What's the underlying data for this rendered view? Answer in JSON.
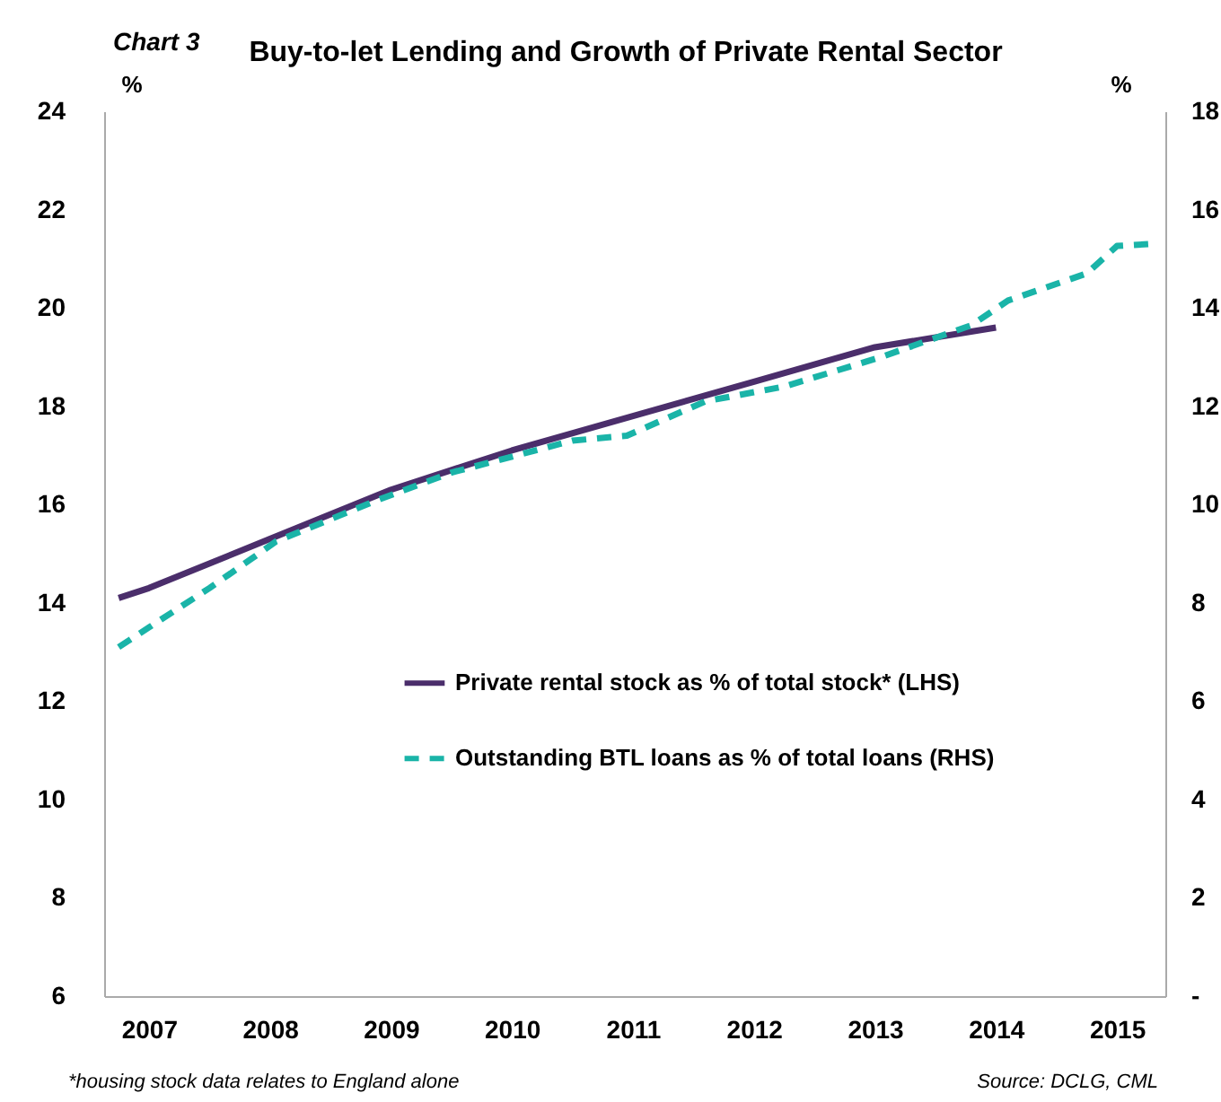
{
  "chart_data": {
    "type": "line",
    "title": "Buy-to-let Lending and Growth of Private Rental Sector",
    "ylabel": "%",
    "y2label": "%",
    "annotations": [
      "Chart 3",
      "*housing stock data relates to England alone",
      "Source: DCLG, CML"
    ],
    "xlim": [
      2006.63,
      2015.4
    ],
    "xticks": [
      2007,
      2008,
      2009,
      2010,
      2011,
      2012,
      2013,
      2014,
      2015
    ],
    "ylim": [
      6,
      24
    ],
    "yticks": [
      6,
      8,
      10,
      12,
      14,
      16,
      18,
      20,
      22,
      24
    ],
    "y2lim": [
      0,
      18
    ],
    "y2ticks": [
      {
        "value": 0,
        "label": "-"
      },
      2,
      4,
      6,
      8,
      10,
      12,
      14,
      16,
      18
    ],
    "grid": false,
    "legend": "center",
    "marker": "none",
    "series": [
      {
        "name": "Private rental stock as % of total stock* (LHS)",
        "color": "#4b2e6b",
        "line_style": "solid",
        "x": [
          2006.75,
          2007,
          2008,
          2009,
          2010,
          2011,
          2012,
          2013,
          2014
        ],
        "values": [
          14.1,
          14.3,
          15.3,
          16.3,
          17.1,
          17.8,
          18.5,
          19.2,
          19.6
        ]
      },
      {
        "name": "Outstanding BTL loans as % of total loans (RHS)",
        "color": "#1ab4a8",
        "line_style": "dashed",
        "axis": "y2",
        "x": [
          2006.75,
          2007,
          2007.5,
          2007.85,
          2008.05,
          2008.9,
          2009.5,
          2010.5,
          2010.95,
          2011.6,
          2012.25,
          2013.05,
          2013.8,
          2014.1,
          2014.75,
          2015,
          2015.27
        ],
        "values": [
          7.1,
          7.5,
          8.3,
          8.9,
          9.25,
          10.1,
          10.65,
          11.3,
          11.4,
          12.1,
          12.4,
          13.0,
          13.65,
          14.15,
          14.7,
          15.26,
          15.3
        ]
      }
    ]
  }
}
